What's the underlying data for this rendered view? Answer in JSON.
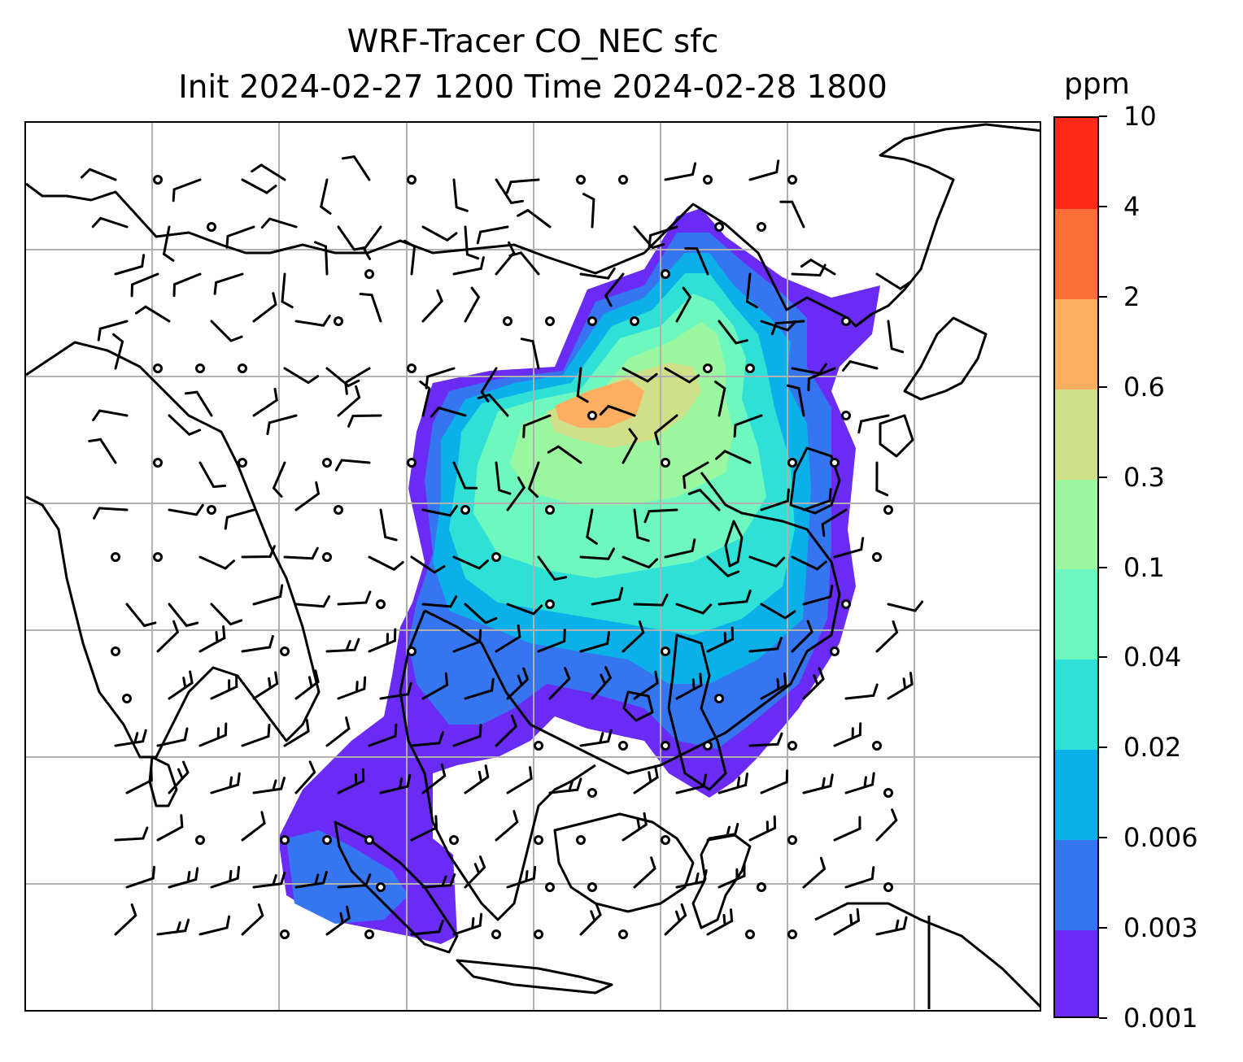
{
  "title": {
    "line1": "WRF-Tracer CO_NEC sfc",
    "line2": "Init 2024-02-27 1200 Time 2024-02-28 1800"
  },
  "colorbar": {
    "unit": "ppm",
    "levels": [
      "0.001",
      "0.003",
      "0.006",
      "0.02",
      "0.04",
      "0.1",
      "0.3",
      "0.6",
      "2",
      "4",
      "10"
    ],
    "colors": [
      "#6a2cf5",
      "#3575f0",
      "#0cb0e8",
      "#2ee0d6",
      "#6ef8c0",
      "#9cf8a0",
      "#cfe088",
      "#fdae61",
      "#ff6f3a",
      "#ff2a1a"
    ]
  },
  "map": {
    "gridlines": true,
    "coastline_color": "#000000",
    "gridline_color": "#b0b0b0",
    "plume_levels": [
      "0.001",
      "0.003",
      "0.006",
      "0.02",
      "0.04",
      "0.1",
      "0.3",
      "0.6",
      "2"
    ],
    "wind_symbols": [
      "wind-barb",
      "calm-circle"
    ]
  }
}
